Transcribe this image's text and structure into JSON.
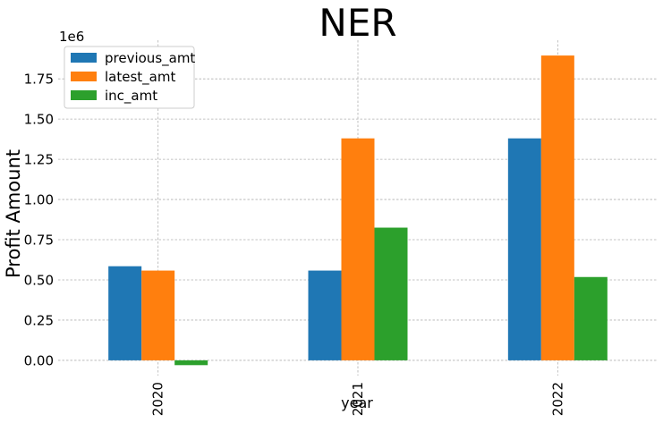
{
  "chart_data": {
    "type": "bar",
    "title": "NER",
    "xlabel": "year",
    "ylabel": "Profit Amount",
    "offset_text": "1e6",
    "categories": [
      "2020",
      "2021",
      "2022"
    ],
    "series": [
      {
        "name": "previous_amt",
        "color": "#1f77b4",
        "values": [
          585000,
          558000,
          1380000
        ]
      },
      {
        "name": "latest_amt",
        "color": "#ff7f0e",
        "values": [
          558000,
          1380000,
          1895000
        ]
      },
      {
        "name": "inc_amt",
        "color": "#2ca02c",
        "values": [
          -30000,
          825000,
          518000
        ]
      }
    ],
    "yticks": [
      0,
      250000,
      500000,
      750000,
      1000000,
      1250000,
      1500000,
      1750000
    ],
    "ytick_labels": [
      "0.00",
      "0.25",
      "0.50",
      "0.75",
      "1.00",
      "1.25",
      "1.50",
      "1.75"
    ],
    "ylim": [
      -95000,
      1990000
    ],
    "grid": true,
    "legend_position": "top-left"
  }
}
